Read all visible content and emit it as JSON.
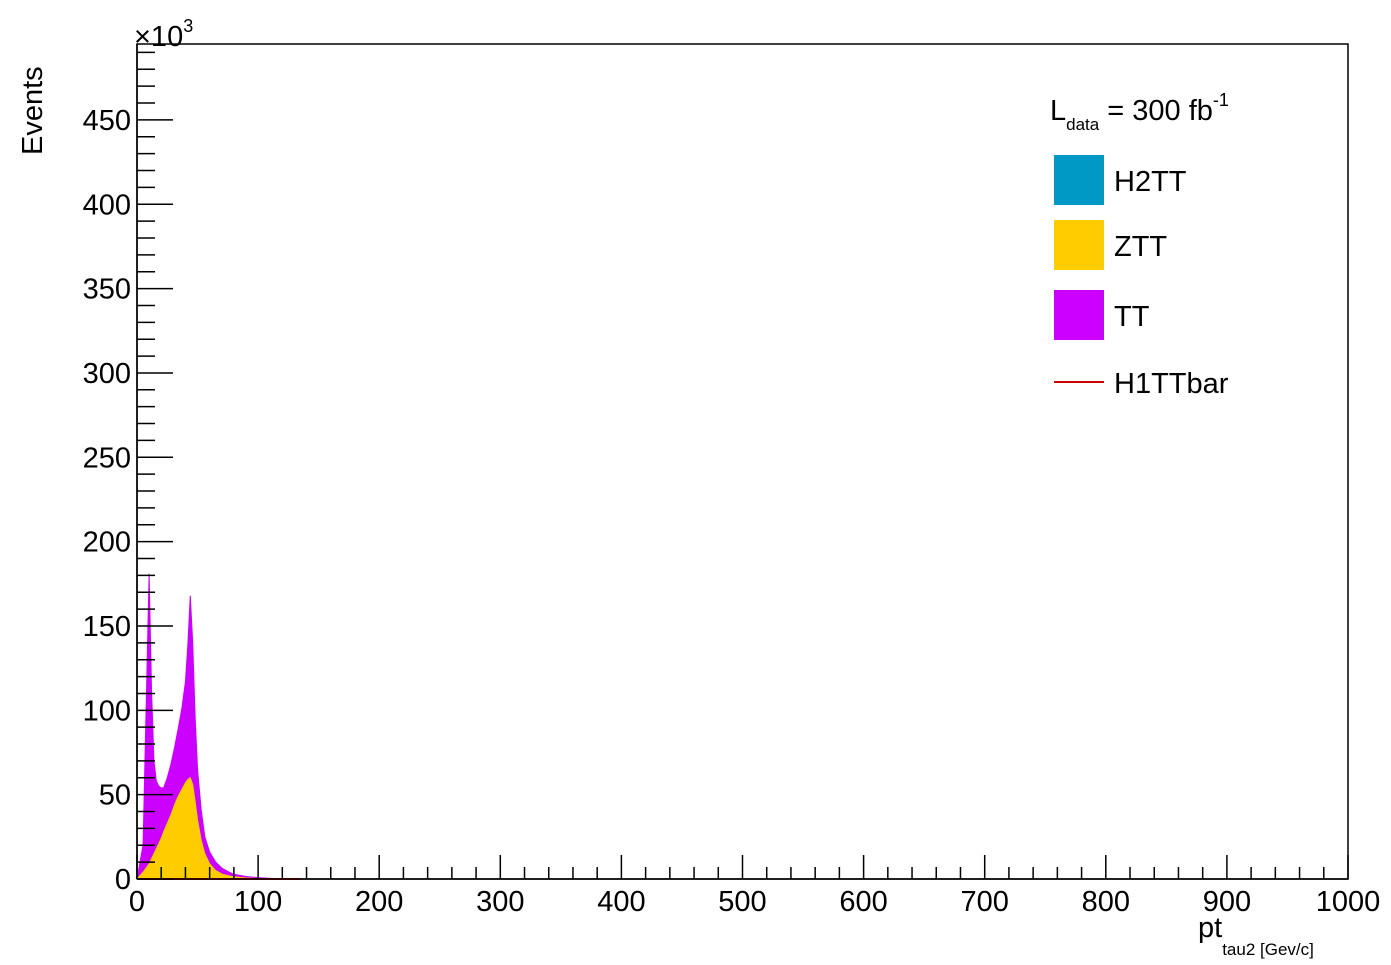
{
  "chart_data": {
    "type": "area",
    "stacked": true,
    "title": "",
    "xlabel": {
      "main": "pt",
      "subscript": "tau2 [Gev/c]"
    },
    "ylabel": "Events",
    "y_multiplier": {
      "prefix": "×10",
      "exponent": "3"
    },
    "xlim": [
      0,
      1000
    ],
    "ylim": [
      0,
      495
    ],
    "x_ticks": [
      0,
      100,
      200,
      300,
      400,
      500,
      600,
      700,
      800,
      900,
      1000
    ],
    "y_ticks": [
      0,
      50,
      100,
      150,
      200,
      250,
      300,
      350,
      400,
      450
    ],
    "grid": false,
    "legend_position": "top-right",
    "luminosity": {
      "symbol": "L",
      "subscript": "data",
      "text": " = 300 fb",
      "superscript": "-1"
    },
    "x": [
      0,
      5,
      10,
      12,
      14,
      16,
      18,
      20,
      22,
      25,
      28,
      31,
      34,
      37,
      40,
      42,
      44,
      46,
      48,
      50,
      53,
      56,
      60,
      65,
      70,
      75,
      80,
      90,
      100,
      110,
      120,
      135
    ],
    "series": [
      {
        "name": "H2TT",
        "color": "#0099c6",
        "kind": "fill",
        "values": [
          0,
          0,
          0,
          0,
          0,
          0,
          0,
          0,
          0,
          0,
          0,
          0,
          0,
          0,
          0,
          0,
          0,
          0,
          0,
          0,
          0,
          0,
          0,
          0,
          0,
          0,
          0,
          0,
          0,
          0,
          0,
          0
        ]
      },
      {
        "name": "ZTT",
        "color": "#ffcc00",
        "kind": "fill",
        "values": [
          0,
          4,
          9,
          12,
          15,
          18,
          21,
          24,
          28,
          33,
          38,
          44,
          49,
          53,
          57,
          59,
          60,
          56,
          46,
          35,
          23,
          15,
          9,
          5,
          3,
          2,
          1.3,
          0.6,
          0.3,
          0.1,
          0.05,
          0
        ]
      },
      {
        "name": "TT",
        "color": "#cc00ff",
        "kind": "fill",
        "values": [
          0,
          16,
          172,
          100,
          55,
          40,
          34,
          30,
          26,
          27,
          30,
          34,
          40,
          48,
          60,
          80,
          108,
          84,
          50,
          30,
          18,
          10,
          7,
          5,
          3.5,
          2.5,
          1.5,
          0.9,
          0.5,
          0.25,
          0.1,
          0
        ]
      },
      {
        "name": "H1TTbar",
        "color": "#cc0000",
        "kind": "line",
        "values": [
          0,
          0,
          0,
          0,
          0,
          0,
          0,
          0,
          0,
          0,
          0,
          0,
          0,
          0,
          0,
          0,
          0,
          0,
          0,
          0,
          0,
          0,
          0,
          0,
          0,
          0,
          0,
          0,
          0,
          0,
          0,
          0
        ]
      }
    ]
  }
}
